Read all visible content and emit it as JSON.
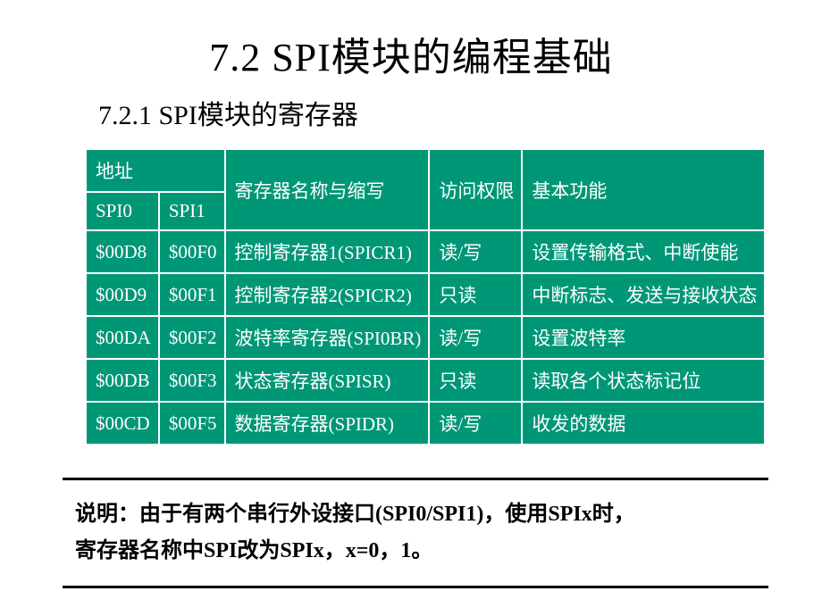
{
  "title": "7.2 SPI模块的编程基础",
  "subtitle": "7.2.1 SPI模块的寄存器",
  "table": {
    "headers": {
      "addr": "地址",
      "spi0": "SPI0",
      "spi1": "SPI1",
      "reg_name": "寄存器名称与缩写",
      "access": "访问权限",
      "func": "基本功能"
    },
    "rows": [
      {
        "spi0": "$00D8",
        "spi1": "$00F0",
        "name": "控制寄存器1(SPICR1)",
        "access": "读/写",
        "func": "设置传输格式、中断使能"
      },
      {
        "spi0": "$00D9",
        "spi1": "$00F1",
        "name": "控制寄存器2(SPICR2)",
        "access": "只读",
        "func": "中断标志、发送与接收状态"
      },
      {
        "spi0": "$00DA",
        "spi1": "$00F2",
        "name": "波特率寄存器(SPI0BR)",
        "access": "读/写",
        "func": "设置波特率"
      },
      {
        "spi0": "$00DB",
        "spi1": "$00F3",
        "name": "状态寄存器(SPISR)",
        "access": "只读",
        "func": "读取各个状态标记位"
      },
      {
        "spi0": "$00CD",
        "spi1": "$00F5",
        "name": "数据寄存器(SPIDR)",
        "access": "读/写",
        "func": "收发的数据"
      }
    ]
  },
  "note": {
    "line1": "说明：由于有两个串行外设接口(SPI0/SPI1)，使用SPIx时，",
    "line2": "寄存器名称中SPI改为SPIx，x=0，1。"
  },
  "colors": {
    "cell_bg": "#009777",
    "cell_text": "#ffffff",
    "page_bg": "#ffffff",
    "text": "#000000"
  }
}
